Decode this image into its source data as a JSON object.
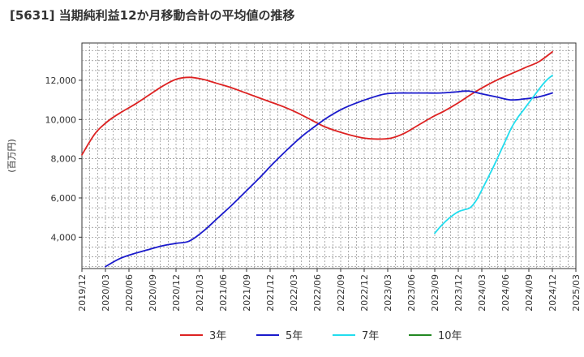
{
  "chart_data": {
    "type": "line",
    "title": "[5631]  当期純利益12か月移動合計の平均値の推移",
    "ylabel": "(百万円)",
    "xlabel": "",
    "x_ticks": [
      "2019/12",
      "2020/03",
      "2020/06",
      "2020/09",
      "2020/12",
      "2021/03",
      "2021/06",
      "2021/09",
      "2021/12",
      "2022/03",
      "2022/06",
      "2022/09",
      "2022/12",
      "2023/03",
      "2023/06",
      "2023/09",
      "2023/12",
      "2024/03",
      "2024/06",
      "2024/09",
      "2024/12",
      "2025/03"
    ],
    "y_ticks": [
      4000,
      6000,
      8000,
      10000,
      12000
    ],
    "y_tick_labels": [
      "4,000",
      "6,000",
      "8,000",
      "10,000",
      "12,000"
    ],
    "ylim": [
      2400,
      13900
    ],
    "grid": true,
    "legend_position": "bottom",
    "series": [
      {
        "name": "3年",
        "color": "#dd2222",
        "start_index": 0,
        "values": [
          8200,
          9300,
          9950,
          10400,
          10800,
          11250,
          11700,
          12050,
          12150,
          12050,
          11850,
          11650,
          11400,
          11150,
          10900,
          10650,
          10350,
          10000,
          9650,
          9400,
          9200,
          9050,
          9000,
          9050,
          9300,
          9700,
          10100,
          10450,
          10850,
          11300,
          11700,
          12050,
          12350,
          12650,
          12950,
          13450
        ]
      },
      {
        "name": "5年",
        "color": "#1a1acc",
        "start_index": 1,
        "values": [
          2500,
          2900,
          3150,
          3350,
          3550,
          3680,
          3800,
          4300,
          4950,
          5600,
          6300,
          7000,
          7750,
          8450,
          9100,
          9650,
          10150,
          10550,
          10850,
          11100,
          11300,
          11350,
          11350,
          11350,
          11350,
          11400,
          11450,
          11300,
          11150,
          11000,
          11050,
          11150,
          11350
        ]
      },
      {
        "name": "7年",
        "color": "#22ddee",
        "start_index": 15,
        "values": [
          4200,
          4550,
          4850,
          5100,
          5300,
          5400,
          5500,
          5850,
          6400,
          7000,
          7600,
          8250,
          8900,
          9550,
          10050,
          10450,
          10850,
          11250,
          11650,
          12000,
          12250
        ]
      },
      {
        "name": "10年",
        "color": "#228822",
        "start_index": 0,
        "values": []
      }
    ]
  }
}
